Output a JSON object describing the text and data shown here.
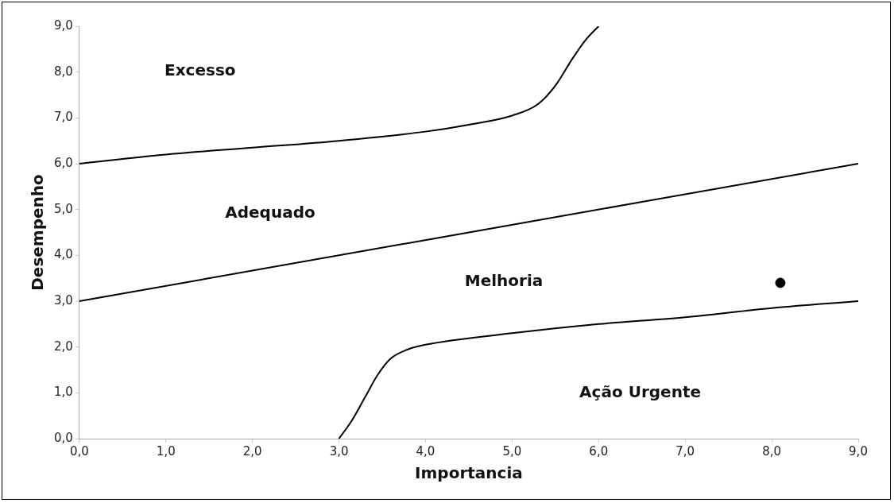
{
  "chart_data": {
    "type": "line",
    "xlabel": "Importancia",
    "ylabel": "Desempenho",
    "xlim": [
      0,
      9
    ],
    "ylim": [
      0,
      9
    ],
    "xticks": [
      {
        "value": 0,
        "label": "0,0"
      },
      {
        "value": 1,
        "label": "1,0"
      },
      {
        "value": 2,
        "label": "2,0"
      },
      {
        "value": 3,
        "label": "3,0"
      },
      {
        "value": 4,
        "label": "4,0"
      },
      {
        "value": 5,
        "label": "5,0"
      },
      {
        "value": 6,
        "label": "6,0"
      },
      {
        "value": 7,
        "label": "7,0"
      },
      {
        "value": 8,
        "label": "8,0"
      },
      {
        "value": 9,
        "label": "9,0"
      }
    ],
    "yticks": [
      {
        "value": 0,
        "label": "0,0"
      },
      {
        "value": 1,
        "label": "1,0"
      },
      {
        "value": 2,
        "label": "2,0"
      },
      {
        "value": 3,
        "label": "3,0"
      },
      {
        "value": 4,
        "label": "4,0"
      },
      {
        "value": 5,
        "label": "5,0"
      },
      {
        "value": 6,
        "label": "6,0"
      },
      {
        "value": 7,
        "label": "7,0"
      },
      {
        "value": 8,
        "label": "8,0"
      },
      {
        "value": 9,
        "label": "9,0"
      }
    ],
    "grid": false,
    "legend": false,
    "line_style": "solid",
    "marker": "none",
    "series": [
      {
        "color": "#000000",
        "x": [
          0,
          1,
          2,
          3,
          4,
          4.5,
          5,
          5.3,
          5.5,
          5.7,
          5.85,
          6
        ],
        "values": [
          6,
          6.2,
          6.35,
          6.5,
          6.7,
          6.85,
          7.05,
          7.3,
          7.7,
          8.3,
          8.7,
          9
        ]
      },
      {
        "color": "#000000",
        "x": [
          0,
          9
        ],
        "values": [
          3,
          6
        ]
      },
      {
        "color": "#000000",
        "x": [
          3,
          3.15,
          3.3,
          3.45,
          3.6,
          3.8,
          4,
          5,
          6,
          7,
          8,
          9
        ],
        "values": [
          0,
          0.4,
          0.9,
          1.4,
          1.75,
          1.95,
          2.05,
          2.3,
          2.5,
          2.65,
          2.85,
          3
        ]
      },
      {
        "type": "scatter",
        "color": "#000000",
        "marker": "circle",
        "x": [
          8.1
        ],
        "values": [
          3.4
        ]
      }
    ],
    "annotations": [
      "Excesso",
      "Adequado",
      "Melhoria",
      "Ação Urgente"
    ]
  }
}
